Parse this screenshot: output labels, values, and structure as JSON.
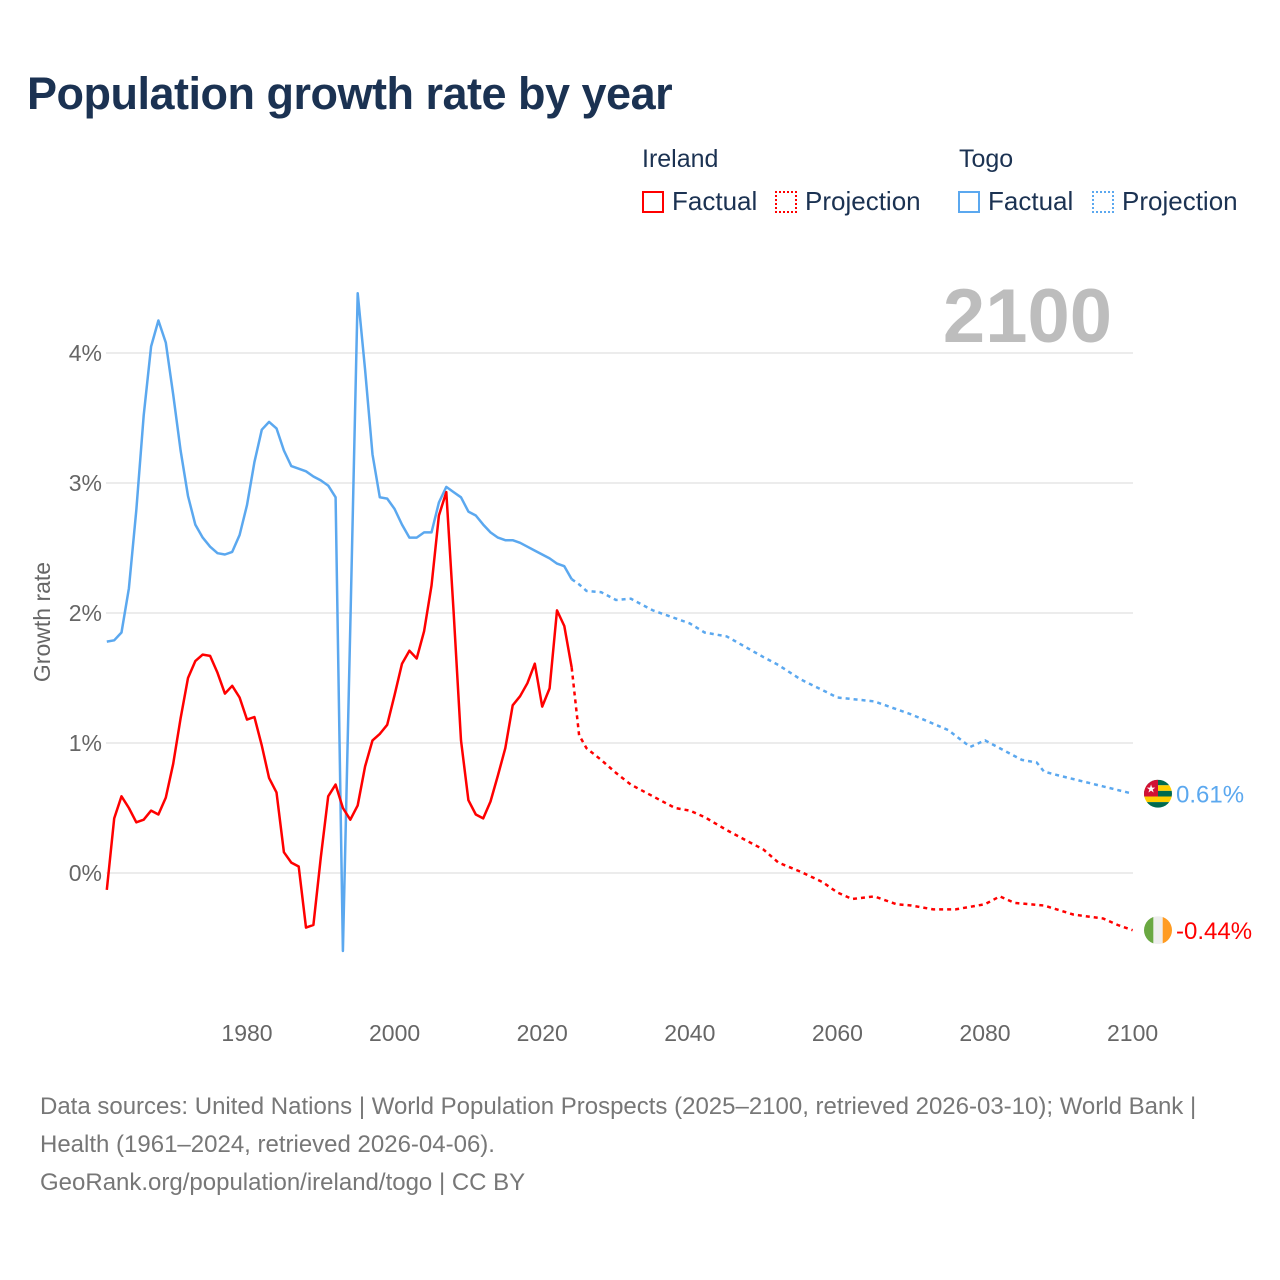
{
  "title": "Population growth rate by year",
  "legend": {
    "groups": [
      {
        "name": "Ireland",
        "factual": "Factual",
        "projection": "Projection",
        "color": "#ff0000"
      },
      {
        "name": "Togo",
        "factual": "Factual",
        "projection": "Projection",
        "color": "#5ba8ef"
      }
    ]
  },
  "year_watermark": "2100",
  "chart_data": {
    "type": "line",
    "title": "Population growth rate by year",
    "xlabel": "",
    "ylabel": "Growth rate",
    "xlim": [
      1961,
      2100
    ],
    "ylim": [
      -0.8,
      4.6
    ],
    "x_ticks": [
      1980,
      2000,
      2020,
      2040,
      2060,
      2080,
      2100
    ],
    "y_ticks": [
      0,
      1,
      2,
      3,
      4
    ],
    "y_tick_labels": [
      "0%",
      "1%",
      "2%",
      "3%",
      "4%"
    ],
    "grid": true,
    "legend_position": "top-right",
    "series": [
      {
        "name": "Togo",
        "color": "#5ba8ef",
        "end_label": "0.61%",
        "flag": "togo-flag",
        "factual": {
          "x": [
            1961,
            1962,
            1963,
            1964,
            1965,
            1966,
            1967,
            1968,
            1969,
            1970,
            1971,
            1972,
            1973,
            1974,
            1975,
            1976,
            1977,
            1978,
            1979,
            1980,
            1981,
            1982,
            1983,
            1984,
            1985,
            1986,
            1987,
            1988,
            1989,
            1990,
            1991,
            1992,
            1993,
            1994,
            1995,
            1996,
            1997,
            1998,
            1999,
            2000,
            2001,
            2002,
            2003,
            2004,
            2005,
            2006,
            2007,
            2008,
            2009,
            2010,
            2011,
            2012,
            2013,
            2014,
            2015,
            2016,
            2017,
            2018,
            2019,
            2020,
            2021,
            2022,
            2023,
            2024
          ],
          "y": [
            1.78,
            1.79,
            1.85,
            2.19,
            2.79,
            3.52,
            4.05,
            4.25,
            4.08,
            3.68,
            3.25,
            2.9,
            2.68,
            2.58,
            2.51,
            2.46,
            2.45,
            2.47,
            2.6,
            2.83,
            3.16,
            3.41,
            3.47,
            3.42,
            3.25,
            3.13,
            3.11,
            3.09,
            3.05,
            3.02,
            2.98,
            2.89,
            -0.6,
            1.9,
            4.46,
            3.87,
            3.22,
            2.89,
            2.88,
            2.8,
            2.68,
            2.58,
            2.58,
            2.62,
            2.62,
            2.85,
            2.97,
            2.93,
            2.89,
            2.78,
            2.75,
            2.68,
            2.62,
            2.58,
            2.56,
            2.56,
            2.54,
            2.51,
            2.48,
            2.45,
            2.42,
            2.38,
            2.36,
            2.26
          ]
        },
        "projection": {
          "x": [
            2024,
            2025,
            2026,
            2028,
            2030,
            2032,
            2035,
            2040,
            2042,
            2045,
            2050,
            2052,
            2055,
            2060,
            2065,
            2070,
            2075,
            2078,
            2080,
            2085,
            2087,
            2088,
            2090,
            2095,
            2100
          ],
          "y": [
            2.26,
            2.22,
            2.17,
            2.16,
            2.1,
            2.11,
            2.02,
            1.92,
            1.85,
            1.82,
            1.66,
            1.6,
            1.49,
            1.35,
            1.32,
            1.22,
            1.1,
            0.97,
            1.02,
            0.87,
            0.85,
            0.78,
            0.75,
            0.68,
            0.61
          ]
        }
      },
      {
        "name": "Ireland",
        "color": "#ff0000",
        "end_label": "-0.44%",
        "flag": "ireland-flag",
        "factual": {
          "x": [
            1961,
            1962,
            1963,
            1964,
            1965,
            1966,
            1967,
            1968,
            1969,
            1970,
            1971,
            1972,
            1973,
            1974,
            1975,
            1976,
            1977,
            1978,
            1979,
            1980,
            1981,
            1982,
            1983,
            1984,
            1985,
            1986,
            1987,
            1988,
            1989,
            1990,
            1991,
            1992,
            1993,
            1994,
            1995,
            1996,
            1997,
            1998,
            1999,
            2000,
            2001,
            2002,
            2003,
            2004,
            2005,
            2006,
            2007,
            2008,
            2009,
            2010,
            2011,
            2012,
            2013,
            2014,
            2015,
            2016,
            2017,
            2018,
            2019,
            2020,
            2021,
            2022,
            2023,
            2024
          ],
          "y": [
            -0.13,
            0.42,
            0.59,
            0.5,
            0.39,
            0.41,
            0.48,
            0.45,
            0.58,
            0.84,
            1.19,
            1.5,
            1.63,
            1.68,
            1.67,
            1.54,
            1.38,
            1.44,
            1.35,
            1.18,
            1.2,
            0.98,
            0.73,
            0.62,
            0.16,
            0.08,
            0.05,
            -0.42,
            -0.4,
            0.12,
            0.59,
            0.68,
            0.5,
            0.41,
            0.52,
            0.82,
            1.02,
            1.07,
            1.14,
            1.37,
            1.61,
            1.71,
            1.65,
            1.86,
            2.21,
            2.75,
            2.93,
            2.01,
            1.02,
            0.56,
            0.45,
            0.42,
            0.55,
            0.75,
            0.96,
            1.29,
            1.36,
            1.46,
            1.61,
            1.28,
            1.42,
            2.02,
            1.9,
            1.58
          ]
        },
        "projection": {
          "x": [
            2024,
            2025,
            2026,
            2028,
            2030,
            2032,
            2035,
            2038,
            2040,
            2042,
            2045,
            2048,
            2050,
            2052,
            2055,
            2058,
            2060,
            2062,
            2065,
            2068,
            2070,
            2073,
            2076,
            2080,
            2082,
            2084,
            2088,
            2092,
            2096,
            2098,
            2100
          ],
          "y": [
            1.58,
            1.06,
            0.96,
            0.87,
            0.77,
            0.68,
            0.59,
            0.5,
            0.48,
            0.43,
            0.33,
            0.24,
            0.18,
            0.08,
            0.01,
            -0.07,
            -0.15,
            -0.2,
            -0.18,
            -0.24,
            -0.25,
            -0.28,
            -0.28,
            -0.24,
            -0.18,
            -0.23,
            -0.25,
            -0.32,
            -0.35,
            -0.4,
            -0.44
          ]
        }
      }
    ]
  },
  "footer": {
    "sources": "Data sources: United Nations | World Population Prospects (2025–2100, retrieved 2026-03-10); World Bank | Health (1961–2024, retrieved 2026-04-06).",
    "link": "GeoRank.org/population/ireland/togo | CC BY"
  }
}
